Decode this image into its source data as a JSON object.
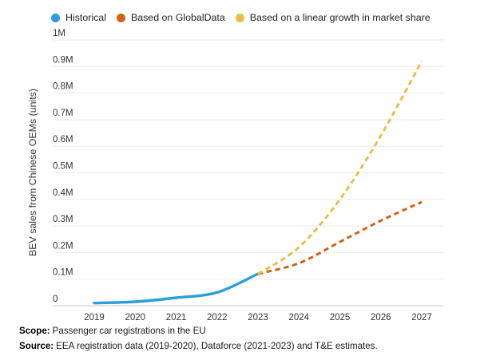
{
  "legend": {
    "items": [
      {
        "label": "Historical",
        "color": "#2b9fdb"
      },
      {
        "label": "Based on GlobalData",
        "color": "#cd6318"
      },
      {
        "label": "Based on a linear growth in market share",
        "color": "#e6c043"
      }
    ]
  },
  "footer": {
    "scope_label": "Scope:",
    "scope_text": "Passenger car registrations in the EU",
    "source_label": "Source:",
    "source_text": "EEA registration data (2019-2020), Dataforce (2021-2023) and T&E estimates."
  },
  "chart_data": {
    "type": "line",
    "title": "",
    "xlabel": "",
    "ylabel": "BEV sales from Chinese OEMs (units)",
    "x": [
      2019,
      2020,
      2021,
      2022,
      2023,
      2024,
      2025,
      2026,
      2027
    ],
    "y_ticks": [
      "0",
      "0.1M",
      "0.2M",
      "0.3M",
      "0.4M",
      "0.5M",
      "0.6M",
      "0.7M",
      "0.8M",
      "0.9M",
      "1M"
    ],
    "ylim": [
      0,
      1.0
    ],
    "units": "millions of units",
    "grid": true,
    "legend_position": "top",
    "series": [
      {
        "name": "Historical",
        "style": "solid",
        "color": "#2b9fdb",
        "x": [
          2019,
          2020,
          2021,
          2022,
          2023
        ],
        "values": [
          0.01,
          0.015,
          0.03,
          0.05,
          0.12
        ]
      },
      {
        "name": "Based on GlobalData",
        "style": "dashed",
        "color": "#cd6318",
        "x": [
          2023,
          2024,
          2025,
          2026,
          2027
        ],
        "values": [
          0.12,
          0.16,
          0.24,
          0.32,
          0.39
        ]
      },
      {
        "name": "Based on a linear growth in market share",
        "style": "dashed",
        "color": "#e6c043",
        "x": [
          2023,
          2024,
          2025,
          2026,
          2027
        ],
        "values": [
          0.12,
          0.22,
          0.4,
          0.64,
          0.92
        ]
      }
    ]
  }
}
